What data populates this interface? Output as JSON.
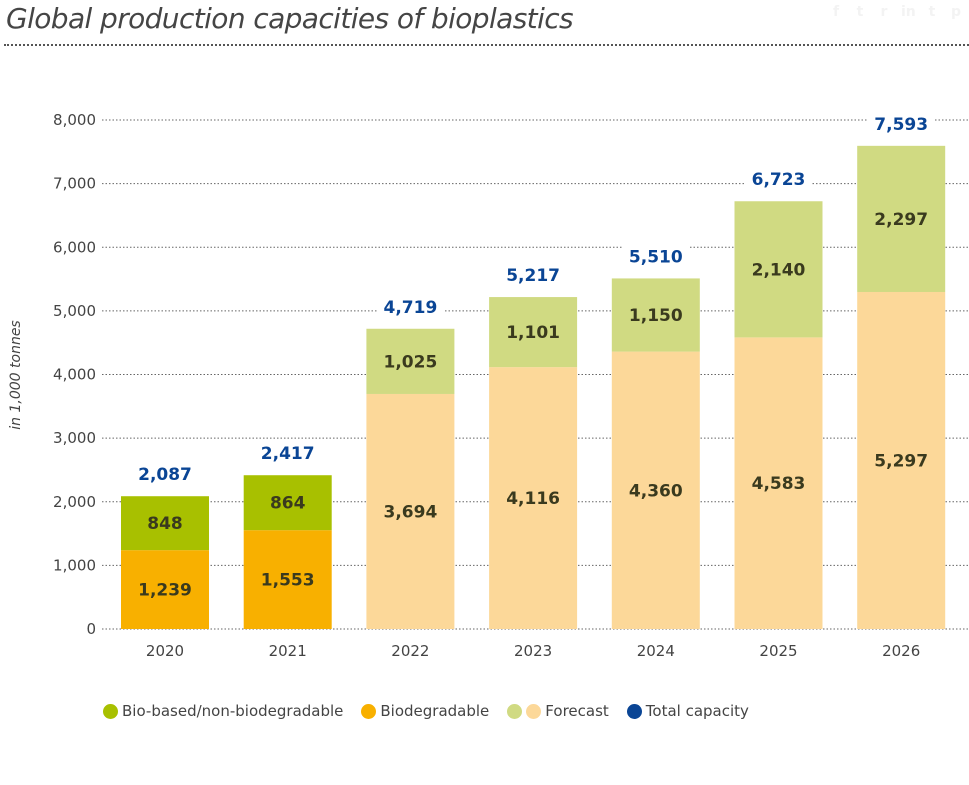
{
  "header": {
    "title": "Global production capacities of bioplastics",
    "share_icons": [
      "facebook-icon",
      "twitter-icon",
      "reddit-icon",
      "linkedin-icon",
      "tumblr-icon",
      "pinterest-icon"
    ],
    "share_glyphs": [
      "f",
      "t",
      "r",
      "in",
      "t",
      "p"
    ]
  },
  "colors": {
    "bio_based": "#a8c000",
    "biodegradable": "#f8b000",
    "forecast_bio_based": "#d0da82",
    "forecast_biodegradable": "#fcd899",
    "total": "#0a4595"
  },
  "chart_data": {
    "type": "bar",
    "stacked": true,
    "title": "Global production capacities of bioplastics",
    "xlabel": "",
    "ylabel": "in 1,000 tonnes",
    "ylim": [
      0,
      8000
    ],
    "yticks": [
      0,
      1000,
      2000,
      3000,
      4000,
      5000,
      6000,
      7000,
      8000
    ],
    "ytick_labels": [
      "0",
      "1,000",
      "2,000",
      "3,000",
      "4,000",
      "5,000",
      "6,000",
      "7,000",
      "8,000"
    ],
    "grid": "horizontal-dotted",
    "categories": [
      "2020",
      "2021",
      "2022",
      "2023",
      "2024",
      "2025",
      "2026"
    ],
    "forecast": [
      false,
      false,
      true,
      true,
      true,
      true,
      true
    ],
    "series": [
      {
        "name": "Biodegradable",
        "values": [
          1239,
          1553,
          3694,
          4116,
          4360,
          4583,
          5297
        ],
        "labels": [
          "1,239",
          "1,553",
          "3,694",
          "4,116",
          "4,360",
          "4,583",
          "5,297"
        ]
      },
      {
        "name": "Bio-based/non-biodegradable",
        "values": [
          848,
          864,
          1025,
          1101,
          1150,
          2140,
          2297
        ],
        "labels": [
          "848",
          "864",
          "1,025",
          "1,101",
          "1,150",
          "2,140",
          "2,297"
        ]
      }
    ],
    "totals": {
      "name": "Total capacity",
      "values": [
        2087,
        2417,
        4719,
        5217,
        5510,
        6723,
        7593
      ],
      "labels": [
        "2,087",
        "2,417",
        "4,719",
        "5,217",
        "5,510",
        "6,723",
        "7,593"
      ]
    },
    "legend_position": "bottom"
  },
  "legend": {
    "items": [
      {
        "label": "Bio-based/non-biodegradable",
        "colors": [
          "#a8c000"
        ]
      },
      {
        "label": "Biodegradable",
        "colors": [
          "#f8b000"
        ]
      },
      {
        "label": "Forecast",
        "colors": [
          "#d0da82",
          "#fcd899"
        ]
      },
      {
        "label": "Total capacity",
        "colors": [
          "#0a4595"
        ]
      }
    ]
  }
}
